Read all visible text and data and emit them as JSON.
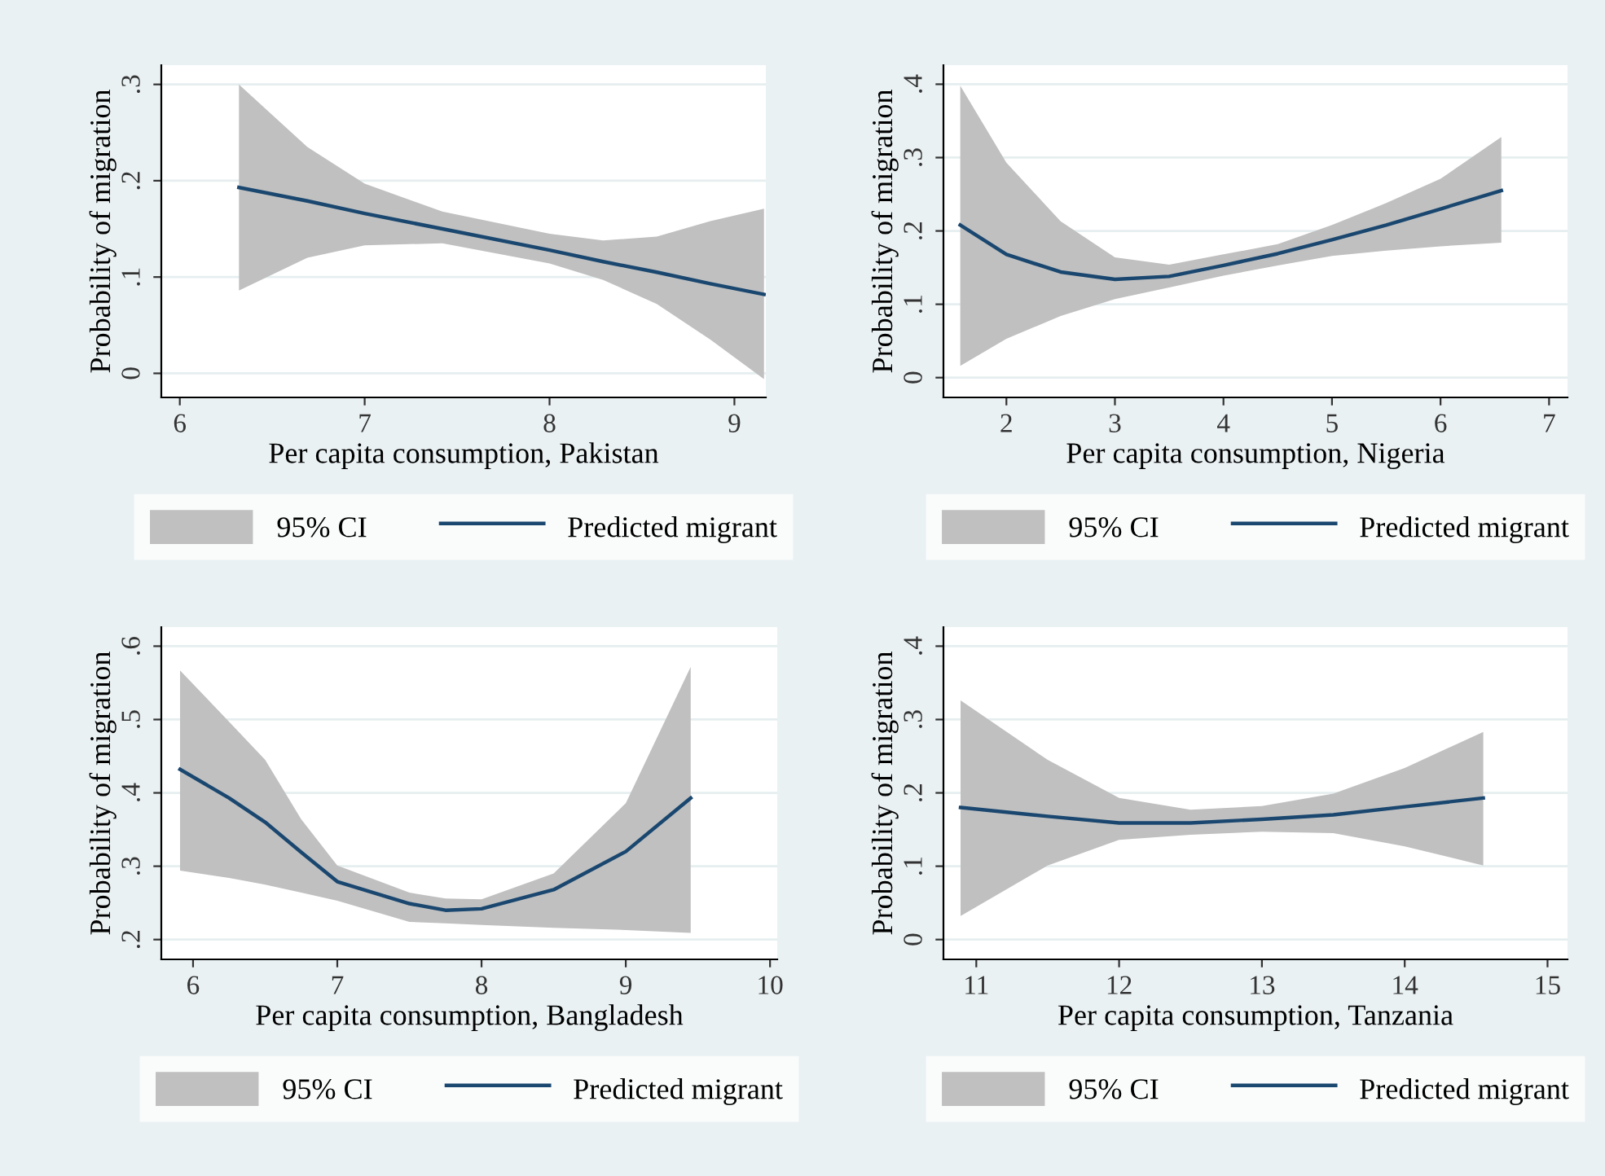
{
  "chart_data": [
    {
      "type": "line",
      "xlabel": "Per capita consumption, Pakistan",
      "ylabel": "Probability of migration",
      "xlim": [
        5.9,
        9.17
      ],
      "xticks": [
        6,
        7,
        8,
        9
      ],
      "ylim": [
        -0.025,
        0.32
      ],
      "yticks": [
        0,
        {
          "value": 0.1,
          "label": ".1"
        },
        {
          "value": 0.2,
          "label": ".2"
        },
        {
          "value": 0.3,
          "label": ".3"
        }
      ],
      "grid": "y",
      "legend": "bottom",
      "annotations": [
        "95% CI"
      ],
      "series": [
        {
          "name": "Predicted migrant",
          "color": "#1a476f",
          "x": [
            6.32,
            6.69,
            7,
            7.42,
            8,
            8.29,
            8.58,
            8.87,
            9.16
          ],
          "values": [
            0.193,
            0.179,
            0.166,
            0.15,
            0.128,
            0.116,
            0.105,
            0.093,
            0.082
          ],
          "lower": [
            0.086,
            0.12,
            0.133,
            0.135,
            0.114,
            0.097,
            0.072,
            0.035,
            -0.006
          ],
          "upper": [
            0.3,
            0.235,
            0.197,
            0.168,
            0.145,
            0.138,
            0.142,
            0.158,
            0.171
          ]
        }
      ]
    },
    {
      "type": "line",
      "xlabel": "Per capita consumption, Nigeria",
      "ylabel": "Probability of migration",
      "xlim": [
        1.42,
        7.17
      ],
      "xticks": [
        2,
        3,
        4,
        5,
        6,
        7
      ],
      "ylim": [
        -0.027,
        0.426
      ],
      "yticks": [
        0,
        {
          "value": 0.1,
          "label": ".1"
        },
        {
          "value": 0.2,
          "label": ".2"
        },
        {
          "value": 0.3,
          "label": ".3"
        },
        {
          "value": 0.4,
          "label": ".4"
        }
      ],
      "grid": "y",
      "legend": "bottom",
      "annotations": [
        "95% CI"
      ],
      "series": [
        {
          "name": "Predicted migrant",
          "color": "#1a476f",
          "x": [
            1.575,
            2,
            2.5,
            3,
            3.5,
            4,
            4.5,
            5,
            5.5,
            6,
            6.56
          ],
          "values": [
            0.208,
            0.168,
            0.144,
            0.134,
            0.138,
            0.153,
            0.169,
            0.188,
            0.208,
            0.23,
            0.255
          ],
          "lower": [
            0.016,
            0.053,
            0.084,
            0.107,
            0.123,
            0.139,
            0.153,
            0.166,
            0.173,
            0.179,
            0.184
          ],
          "upper": [
            0.398,
            0.293,
            0.213,
            0.164,
            0.154,
            0.168,
            0.182,
            0.208,
            0.238,
            0.271,
            0.328
          ]
        }
      ]
    },
    {
      "type": "line",
      "xlabel": "Per capita consumption, Bangladesh",
      "ylabel": "Probability of migration",
      "xlim": [
        5.78,
        10.05
      ],
      "xticks": [
        6,
        7,
        8,
        9,
        10
      ],
      "ylim": [
        0.173,
        0.626
      ],
      "yticks": [
        {
          "value": 0.2,
          "label": ".2"
        },
        {
          "value": 0.3,
          "label": ".3"
        },
        {
          "value": 0.4,
          "label": ".4"
        },
        {
          "value": 0.5,
          "label": ".5"
        },
        {
          "value": 0.6,
          "label": ".6"
        }
      ],
      "grid": "y",
      "legend": "bottom",
      "annotations": [
        "95% CI"
      ],
      "series": [
        {
          "name": "Predicted migrant",
          "color": "#1a476f",
          "x": [
            5.91,
            6.25,
            6.5,
            6.75,
            7,
            7.5,
            7.75,
            8,
            8.5,
            9,
            9.45
          ],
          "values": [
            0.432,
            0.393,
            0.36,
            0.319,
            0.279,
            0.249,
            0.24,
            0.242,
            0.268,
            0.32,
            0.393
          ],
          "lower": [
            0.294,
            0.284,
            0.275,
            0.264,
            0.253,
            0.224,
            0.222,
            0.22,
            0.216,
            0.213,
            0.209
          ],
          "upper": [
            0.567,
            0.497,
            0.445,
            0.364,
            0.301,
            0.264,
            0.256,
            0.255,
            0.29,
            0.386,
            0.572
          ]
        }
      ]
    },
    {
      "type": "line",
      "xlabel": "Per capita consumption, Tanzania",
      "ylabel": "Probability of migration",
      "xlim": [
        10.77,
        15.14
      ],
      "xticks": [
        11,
        12,
        13,
        14,
        15
      ],
      "ylim": [
        -0.027,
        0.426
      ],
      "yticks": [
        0,
        {
          "value": 0.1,
          "label": ".1"
        },
        {
          "value": 0.2,
          "label": ".2"
        },
        {
          "value": 0.3,
          "label": ".3"
        },
        {
          "value": 0.4,
          "label": ".4"
        }
      ],
      "grid": "y",
      "legend": "bottom",
      "annotations": [
        "95% CI"
      ],
      "series": [
        {
          "name": "Predicted migrant",
          "color": "#1a476f",
          "x": [
            10.89,
            11.5,
            12,
            12.5,
            13,
            13.5,
            14,
            14.55
          ],
          "values": [
            0.18,
            0.168,
            0.159,
            0.159,
            0.164,
            0.17,
            0.181,
            0.193
          ],
          "lower": [
            0.032,
            0.101,
            0.136,
            0.143,
            0.147,
            0.145,
            0.127,
            0.101
          ],
          "upper": [
            0.326,
            0.245,
            0.193,
            0.177,
            0.182,
            0.199,
            0.234,
            0.283
          ]
        }
      ]
    }
  ]
}
